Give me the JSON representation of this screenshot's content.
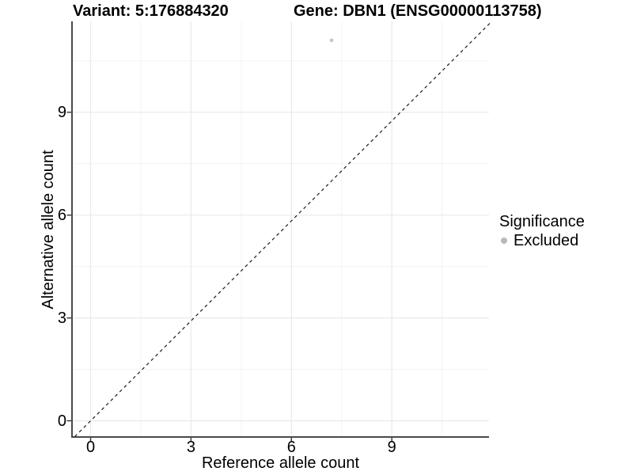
{
  "chart_data": {
    "type": "scatter",
    "titles": [
      "Variant: 5:176884320",
      "Gene: DBN1 (ENSG00000113758)"
    ],
    "xlabel": "Reference allele count",
    "ylabel": "Alternative allele count",
    "x_ticks": [
      0,
      3,
      6,
      9
    ],
    "y_ticks": [
      0,
      3,
      6,
      9
    ],
    "xlim": [
      -0.55,
      11.9
    ],
    "ylim": [
      -0.47,
      11.68
    ],
    "grid": {
      "major": [
        0,
        3,
        6,
        9
      ],
      "minor": [
        1.5,
        4.5,
        7.5,
        10.5
      ],
      "major_color": "#e9e9e9",
      "minor_color": "#f3f3f3"
    },
    "points": [
      {
        "x": 7.2,
        "y": 11.1,
        "series": "Excluded",
        "color": "#c7c7c7"
      }
    ],
    "reference_line": {
      "type": "identity y = x",
      "style": "dashed",
      "color": "#1a1a1a"
    },
    "legend": {
      "title": "Significance",
      "position": "right",
      "entries": [
        {
          "label": "Excluded",
          "color": "#b9b9b9"
        }
      ]
    },
    "axis_color": "#4a4a4a",
    "tick_color": "#333333",
    "text_color": "#000000"
  }
}
